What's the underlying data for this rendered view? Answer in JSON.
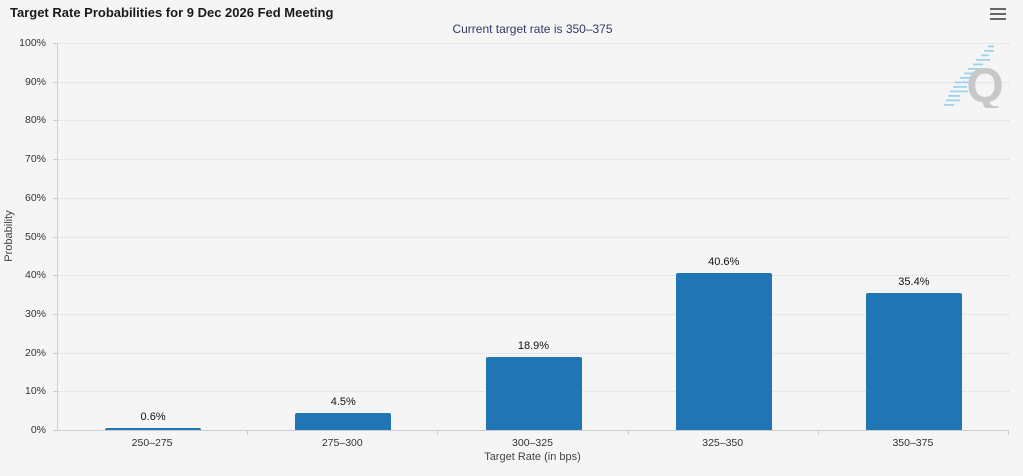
{
  "chart_data": {
    "type": "bar",
    "title": "Target Rate Probabilities for 9 Dec 2026 Fed Meeting",
    "subtitle": "Current target rate is 350–375",
    "categories": [
      "250–275",
      "275–300",
      "300–325",
      "325–350",
      "350–375"
    ],
    "values": [
      0.6,
      4.5,
      18.9,
      40.6,
      35.4
    ],
    "value_labels": [
      "0.6%",
      "4.5%",
      "18.9%",
      "40.6%",
      "35.4%"
    ],
    "xlabel": "Target Rate (in bps)",
    "ylabel": "Probability",
    "ylim": [
      0,
      100
    ],
    "ytick_step": 10,
    "ytick_labels": [
      "0%",
      "10%",
      "20%",
      "30%",
      "40%",
      "50%",
      "60%",
      "70%",
      "80%",
      "90%",
      "100%"
    ],
    "grid": true,
    "legend": "none",
    "bar_color": "#2076b4"
  },
  "icons": {
    "menu": "hamburger-icon",
    "watermark_letter": "Q"
  },
  "colors": {
    "background": "#f5f5f6",
    "bar": "#2076b4",
    "subtitle_text": "#333a63",
    "gridline": "#d8d8d8",
    "axis_line": "#cccccc",
    "watermark_gray": "#c8c8c8",
    "watermark_blue": "#9fd2ec"
  }
}
